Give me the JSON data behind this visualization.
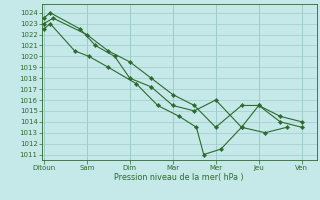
{
  "bg_color": "#c5e8e8",
  "line_color": "#2d6a2d",
  "grid_color": "#a0cccc",
  "xlabel": "Pression niveau de la mer( hPa )",
  "ylim": [
    1010.5,
    1024.8
  ],
  "yticks": [
    1011,
    1012,
    1013,
    1014,
    1015,
    1016,
    1017,
    1018,
    1019,
    1020,
    1021,
    1022,
    1023,
    1024
  ],
  "x_labels": [
    "Ditoun",
    "Sam",
    "Dim",
    "Mar",
    "Mer",
    "Jeu",
    "Ven"
  ],
  "x_positions": [
    0,
    1,
    2,
    3,
    4,
    5,
    6
  ],
  "xlim": [
    -0.05,
    6.35
  ],
  "s1": {
    "x": [
      0.0,
      0.22,
      1.0,
      1.5,
      2.0,
      2.5,
      3.0,
      3.5,
      4.0,
      4.6,
      5.0,
      5.5,
      6.0
    ],
    "y": [
      1023.0,
      1023.5,
      1022.0,
      1020.5,
      1019.5,
      1018.0,
      1016.5,
      1015.5,
      1013.5,
      1015.5,
      1015.5,
      1014.0,
      1013.5
    ]
  },
  "s2": {
    "x": [
      0.0,
      0.15,
      0.72,
      1.05,
      1.5,
      2.15,
      2.65,
      3.15,
      3.55,
      3.72,
      4.12,
      4.6,
      5.15,
      5.65
    ],
    "y": [
      1022.5,
      1023.0,
      1020.5,
      1020.0,
      1019.0,
      1017.5,
      1015.5,
      1014.5,
      1013.5,
      1011.0,
      1011.5,
      1013.5,
      1013.0,
      1013.5
    ]
  },
  "s3": {
    "x": [
      0.0,
      0.15,
      0.85,
      1.2,
      1.65,
      2.0,
      2.5,
      3.0,
      3.5,
      4.0,
      4.6,
      5.0,
      5.5,
      6.0
    ],
    "y": [
      1023.5,
      1024.0,
      1022.5,
      1021.0,
      1020.0,
      1018.0,
      1017.2,
      1015.5,
      1015.0,
      1016.0,
      1013.5,
      1015.5,
      1014.5,
      1014.0
    ]
  },
  "tick_fontsize": 5.0,
  "xlabel_fontsize": 5.8,
  "linewidth": 0.8,
  "markersize": 2.2
}
